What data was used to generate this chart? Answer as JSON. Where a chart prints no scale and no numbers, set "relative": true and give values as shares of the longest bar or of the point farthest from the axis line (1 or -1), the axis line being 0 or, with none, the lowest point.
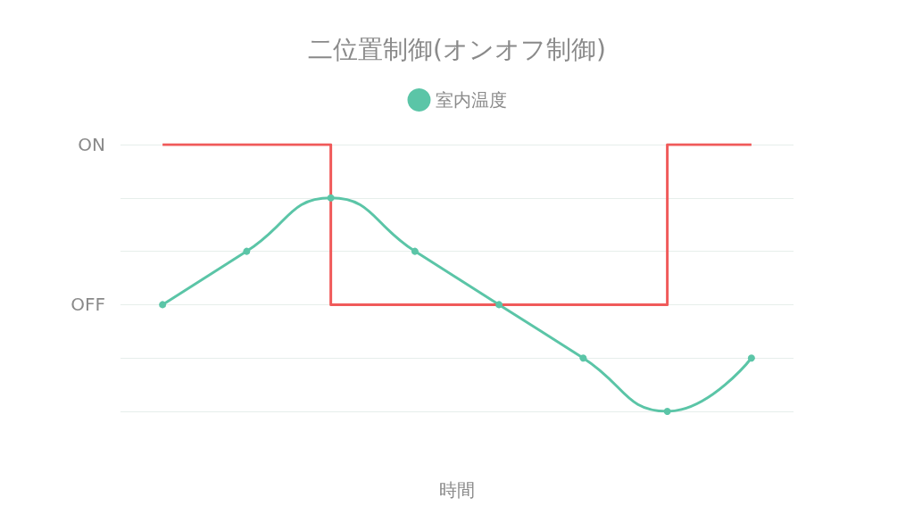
{
  "chart_data": {
    "type": "line",
    "title": "二位置制御(オンオフ制御)",
    "xlabel": "時間",
    "categories": [
      null,
      null,
      null,
      null,
      null,
      null,
      null,
      null
    ],
    "relative": true,
    "series": [
      {
        "name": "室内温度",
        "color": "#5bc5a7",
        "values": [
          0.4,
          0.6,
          0.8,
          0.6,
          0.4,
          0.2,
          0,
          0.2
        ],
        "marker": "circle"
      },
      {
        "type": "step",
        "color": "#f05a5a",
        "values": [
          1,
          1,
          0.4,
          0.4,
          0.4,
          0.4,
          1,
          1
        ],
        "marker": "none"
      }
    ],
    "annotations": [
      "ON",
      "OFF"
    ],
    "grid": "y",
    "legend": "top"
  }
}
